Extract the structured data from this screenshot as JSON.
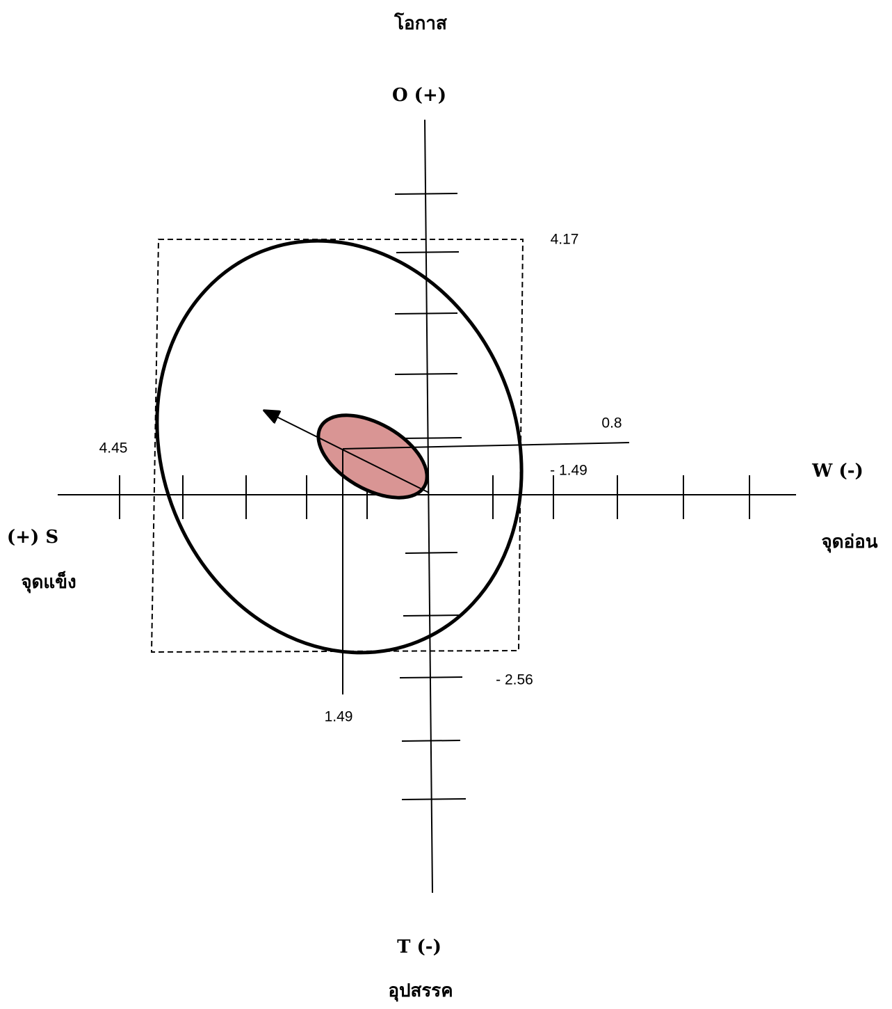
{
  "axes": {
    "top": {
      "title": "โอกาส",
      "label": "O (+)"
    },
    "bottom": {
      "label": "T (-)",
      "title": "อุปสรรค"
    },
    "left": {
      "label": "(+) S",
      "title": "จุดแข็ง"
    },
    "right": {
      "label": "W (-)",
      "title": "จุดอ่อน"
    }
  },
  "values": {
    "top": "4.17",
    "line": "0.8",
    "left": "4.45",
    "right": "- 1.49",
    "bottom": "- 2.56",
    "point": "1.49"
  }
}
